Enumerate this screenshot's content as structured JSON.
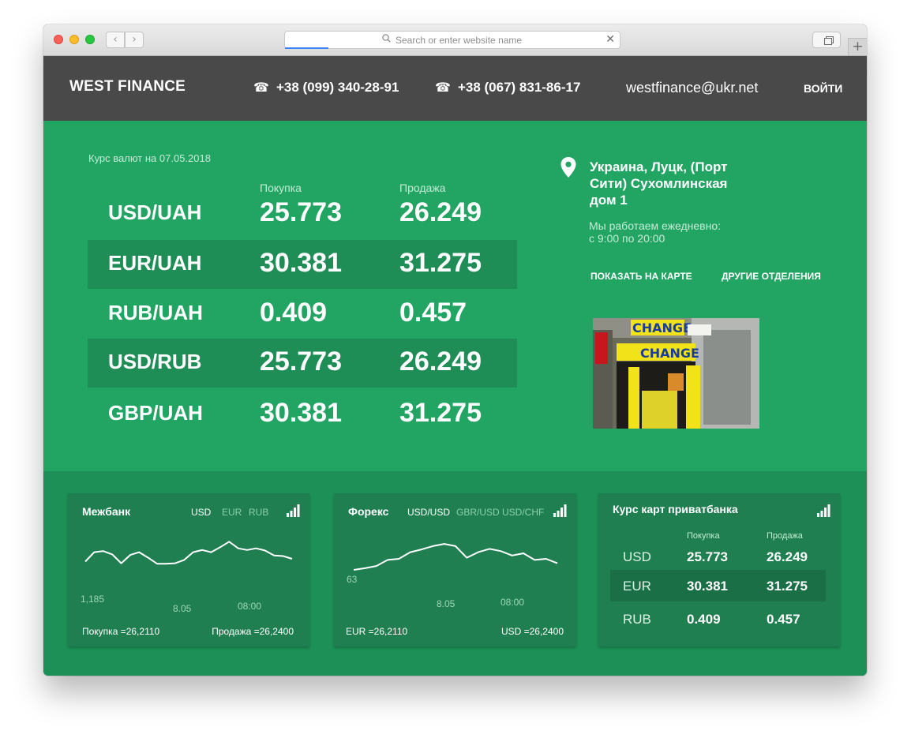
{
  "browser": {
    "url_placeholder": "Search or enter website name",
    "back_icon": "chevron-left-icon",
    "forward_icon": "chevron-right-icon"
  },
  "header": {
    "logo": "WEST FINANCE",
    "phone1": "+38 (099) 340-28-91",
    "phone2": "+38 (067) 831-86-17",
    "phone_icon": "☎",
    "email": "westfinance@ukr.net",
    "login": "ВОЙТИ"
  },
  "rates": {
    "date_label": "Курс валют на 07.05.2018",
    "buy_header": "Покупка",
    "sell_header": "Продажа",
    "rows": [
      {
        "pair": "USD/UAH",
        "buy": "25.773",
        "sell": "26.249"
      },
      {
        "pair": "EUR/UAH",
        "buy": "30.381",
        "sell": "31.275"
      },
      {
        "pair": "RUB/UAH",
        "buy": "0.409",
        "sell": "0.457"
      },
      {
        "pair": "USD/RUB",
        "buy": "25.773",
        "sell": "26.249"
      },
      {
        "pair": "GBP/UAH",
        "buy": "30.381",
        "sell": "31.275"
      }
    ]
  },
  "office": {
    "address": "Украина, Луцк, (Порт Сити) Сухомлинская дом 1",
    "hours_line1": "Мы работаем ежедневно:",
    "hours_line2": "с 9:00 по 20:00",
    "map_link": "ПОКАЗАТЬ НА КАРТЕ",
    "branches_link": "ДРУГИЕ ОТДЕЛЕНИЯ",
    "photo_sign": "CHANGE"
  },
  "interbank": {
    "title": "Межбанк",
    "tabs": [
      "USD",
      "EUR",
      "RUB"
    ],
    "active_tab": "USD",
    "buy_text": "Покупка =26,2110",
    "sell_text": "Продажа =26,2400"
  },
  "forex": {
    "title": "Форекс",
    "tabs": [
      "USD/USD",
      "GBR/USD",
      "USD/CHF"
    ],
    "active_tab": "USD/USD",
    "eur_text": "EUR =26,2110",
    "usd_text": "USD =26,2400"
  },
  "privatbank": {
    "title": "Курс карт приватбанка",
    "buy_header": "Покупка",
    "sell_header": "Продажа",
    "rows": [
      {
        "cur": "USD",
        "buy": "25.773",
        "sell": "26.249"
      },
      {
        "cur": "EUR",
        "buy": "30.381",
        "sell": "31.275"
      },
      {
        "cur": "RUB",
        "buy": "0.409",
        "sell": "0.457"
      }
    ]
  },
  "chart_data": [
    {
      "type": "line",
      "series": [
        {
          "values": [
            0.45,
            0.62,
            0.64,
            0.58,
            0.42,
            0.57,
            0.62,
            0.52,
            0.41,
            0.41,
            0.42,
            0.48,
            0.62,
            0.66,
            0.62,
            0.71,
            0.81,
            0.69,
            0.66,
            0.69,
            0.65,
            0.56,
            0.55,
            0.5
          ]
        }
      ],
      "ylabel_tick": "1,185",
      "x_ticks": [
        "8.05",
        "08:00"
      ]
    },
    {
      "type": "line",
      "series": [
        {
          "values": [
            0.3,
            0.33,
            0.37,
            0.48,
            0.5,
            0.62,
            0.67,
            0.73,
            0.77,
            0.73,
            0.52,
            0.62,
            0.68,
            0.64,
            0.56,
            0.6,
            0.48,
            0.5,
            0.42
          ]
        }
      ],
      "ylabel_tick": "63",
      "x_ticks": [
        "8.05",
        "08:00"
      ]
    }
  ],
  "colors": {
    "main_bg": "#22a463",
    "header_bg": "#494949",
    "stripe": "#1f8d56",
    "card_bg": "#1f7f50"
  }
}
